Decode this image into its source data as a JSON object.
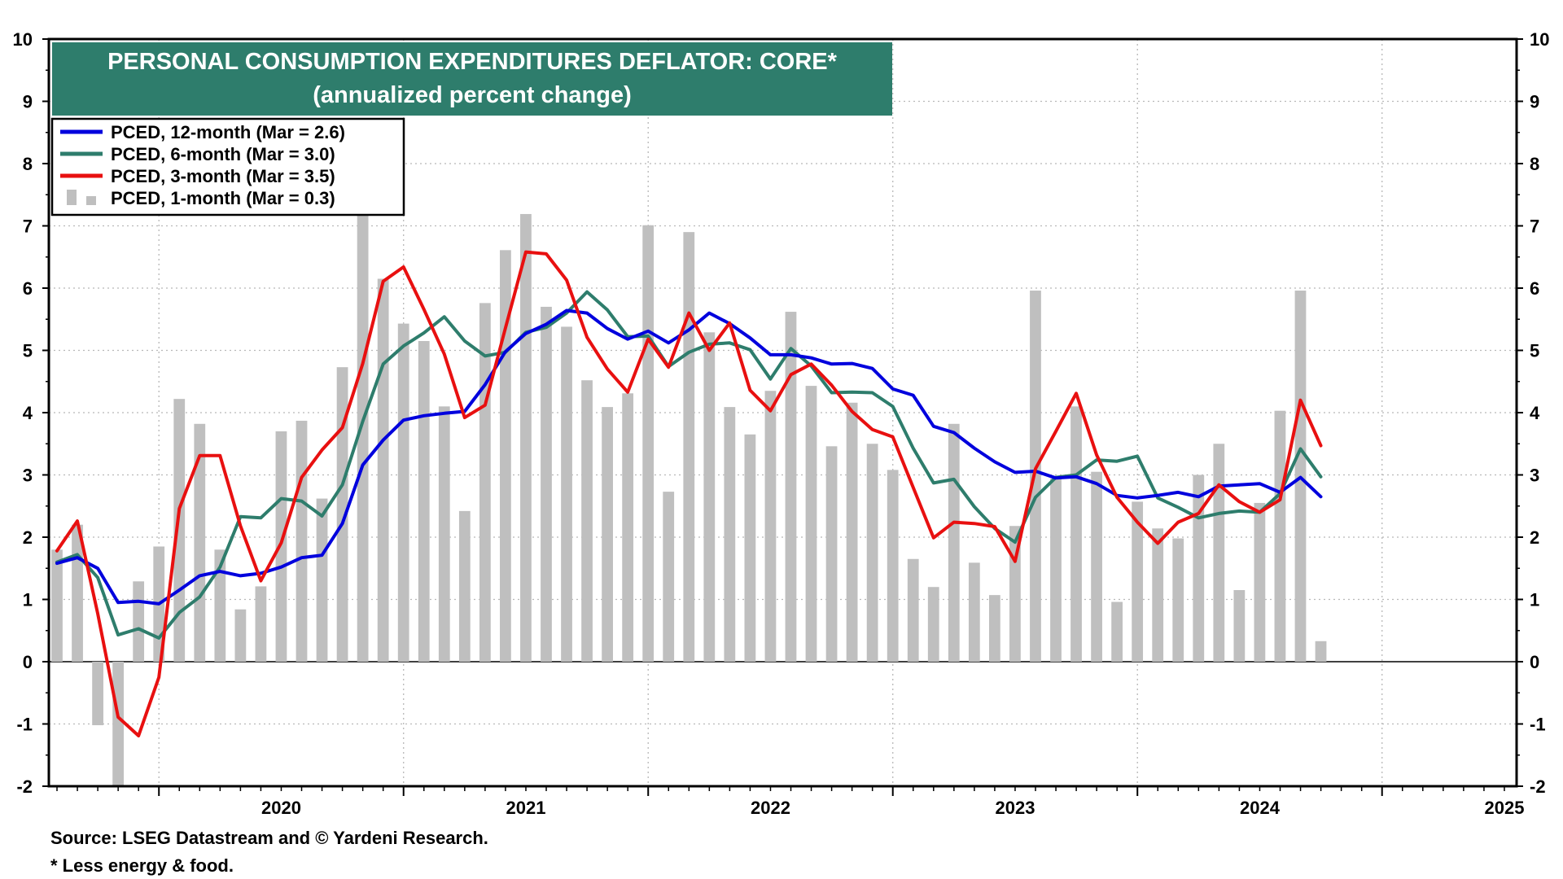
{
  "chart_data": {
    "type": "line",
    "title": "PERSONAL CONSUMPTION EXPENDITURES DEFLATOR: CORE*",
    "subtitle": "(annualized percent change)",
    "ylim": [
      -2,
      10
    ],
    "yticks": [
      -2,
      -1,
      0,
      1,
      2,
      3,
      4,
      5,
      6,
      7,
      8,
      9,
      10
    ],
    "xlim": [
      2019.55,
      2025.55
    ],
    "xticks": [
      2020,
      2021,
      2022,
      2023,
      2024,
      2025
    ],
    "xtick_labels": [
      "2020",
      "2021",
      "2022",
      "2023",
      "2024",
      "2025"
    ],
    "grid": true,
    "legend_position": "top-left",
    "x_start": 2019.5833,
    "x_step": 0.08333,
    "colors": {
      "pced_12m": "#0000dd",
      "pced_6m": "#2e7d6c",
      "pced_3m": "#e81010",
      "pced_1m": "#bfbfbf",
      "title_bg": "#2e7d6c"
    },
    "series": [
      {
        "key": "pced_12m",
        "name": "PCED, 12-month (Mar = 2.6)",
        "kind": "line",
        "values": [
          1.58,
          1.67,
          1.5,
          0.95,
          0.97,
          0.93,
          1.15,
          1.38,
          1.45,
          1.38,
          1.42,
          1.52,
          1.67,
          1.71,
          2.22,
          3.16,
          3.56,
          3.88,
          3.95,
          3.99,
          4.02,
          4.45,
          4.98,
          5.27,
          5.42,
          5.64,
          5.6,
          5.35,
          5.18,
          5.31,
          5.12,
          5.33,
          5.6,
          5.43,
          5.2,
          4.93,
          4.93,
          4.88,
          4.78,
          4.79,
          4.71,
          4.38,
          4.28,
          3.78,
          3.68,
          3.43,
          3.21,
          3.04,
          3.06,
          2.95,
          2.97,
          2.86,
          2.67,
          2.63,
          2.67,
          2.72,
          2.65,
          2.82,
          2.84,
          2.86,
          2.72,
          2.96,
          2.65
        ]
      },
      {
        "key": "pced_6m",
        "name": "PCED, 6-month (Mar = 3.0)",
        "kind": "line",
        "values": [
          1.6,
          1.72,
          1.35,
          0.43,
          0.53,
          0.38,
          0.79,
          1.04,
          1.52,
          2.33,
          2.31,
          2.62,
          2.58,
          2.34,
          2.84,
          3.86,
          4.78,
          5.07,
          5.28,
          5.54,
          5.15,
          4.91,
          4.97,
          5.29,
          5.37,
          5.6,
          5.94,
          5.65,
          5.22,
          5.23,
          4.74,
          4.97,
          5.1,
          5.12,
          5.01,
          4.54,
          5.03,
          4.75,
          4.32,
          4.33,
          4.32,
          4.1,
          3.43,
          2.87,
          2.93,
          2.49,
          2.14,
          1.92,
          2.64,
          2.96,
          3.0,
          3.24,
          3.22,
          3.3,
          2.63,
          2.48,
          2.31,
          2.38,
          2.42,
          2.4,
          2.7,
          3.42,
          2.97
        ]
      },
      {
        "key": "pced_3m",
        "name": "PCED, 3-month (Mar = 3.5)",
        "kind": "line",
        "values": [
          1.78,
          2.26,
          0.77,
          -0.89,
          -1.19,
          -0.25,
          2.46,
          3.31,
          3.31,
          2.18,
          1.3,
          1.91,
          2.96,
          3.4,
          3.76,
          4.79,
          6.11,
          6.34,
          5.66,
          4.94,
          3.92,
          4.12,
          5.36,
          6.58,
          6.55,
          6.13,
          5.21,
          4.7,
          4.33,
          5.18,
          4.73,
          5.6,
          5.0,
          5.44,
          4.36,
          4.03,
          4.61,
          4.78,
          4.44,
          4.02,
          3.73,
          3.61,
          2.8,
          1.99,
          2.24,
          2.22,
          2.17,
          1.61,
          3.1,
          3.7,
          4.31,
          3.32,
          2.64,
          2.24,
          1.9,
          2.24,
          2.38,
          2.84,
          2.57,
          2.4,
          2.6,
          4.2,
          3.47
        ]
      },
      {
        "key": "pced_1m",
        "name": "PCED, 1-month (Mar = 0.3)",
        "kind": "bar",
        "values": [
          1.8,
          2.2,
          -1.02,
          -2.01,
          1.29,
          1.85,
          4.22,
          3.82,
          1.8,
          0.84,
          1.21,
          3.7,
          3.87,
          2.62,
          4.73,
          7.3,
          6.15,
          5.43,
          5.15,
          4.1,
          2.42,
          5.76,
          6.61,
          7.19,
          5.7,
          5.38,
          4.52,
          4.09,
          4.31,
          7.01,
          2.73,
          6.9,
          5.29,
          4.09,
          3.65,
          4.35,
          5.62,
          4.43,
          3.46,
          4.16,
          3.5,
          3.08,
          1.65,
          1.2,
          3.82,
          1.59,
          1.07,
          2.18,
          5.96,
          2.94,
          4.1,
          3.05,
          0.96,
          2.57,
          2.14,
          1.98,
          3.0,
          3.5,
          1.15,
          2.55,
          4.03,
          5.96,
          0.33
        ]
      }
    ],
    "source": "Source: LSEG Datastream and © Yardeni Research.",
    "footnote": "* Less energy & food."
  }
}
